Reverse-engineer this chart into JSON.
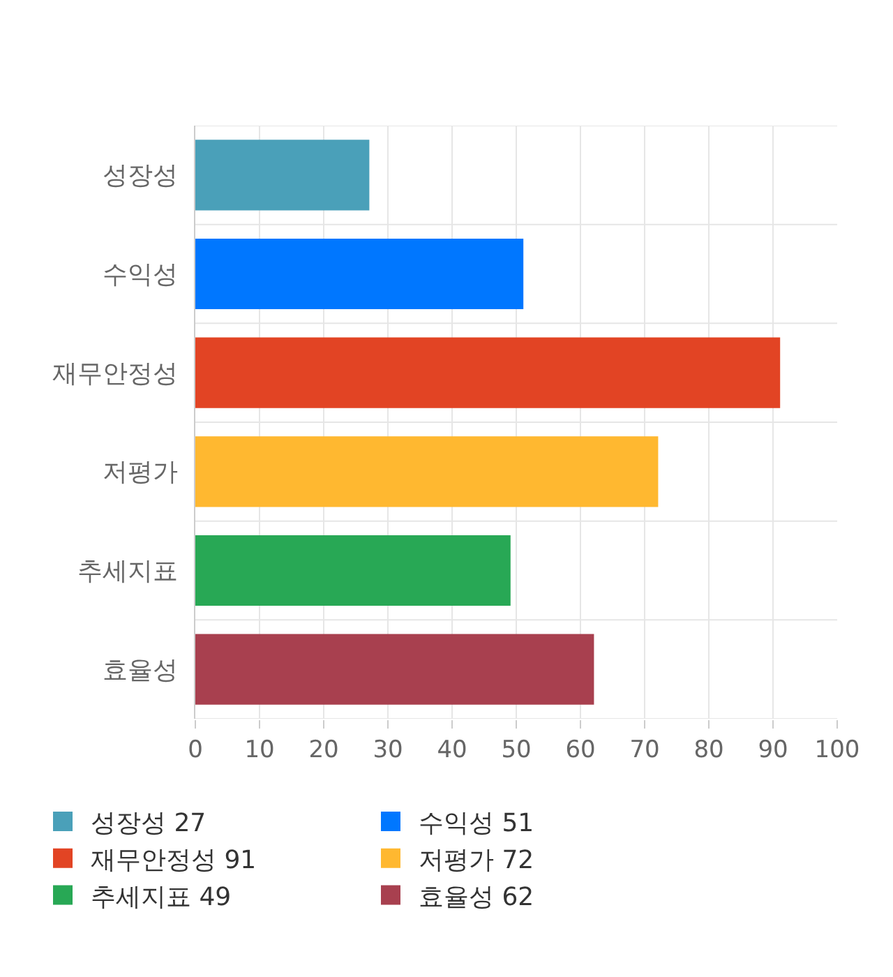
{
  "chart_data": {
    "type": "bar",
    "orientation": "horizontal",
    "categories": [
      "성장성",
      "수익성",
      "재무안정성",
      "저평가",
      "추세지표",
      "효율성"
    ],
    "series": [
      {
        "name": "성장성 27",
        "color": "#4aa0b9",
        "values": [
          27,
          null,
          null,
          null,
          null,
          null
        ]
      },
      {
        "name": "수익성 51",
        "color": "#0077ff",
        "values": [
          null,
          51,
          null,
          null,
          null,
          null
        ]
      },
      {
        "name": "재무안정성 91",
        "color": "#e24424",
        "values": [
          null,
          null,
          91,
          null,
          null,
          null
        ]
      },
      {
        "name": "저평가 72",
        "color": "#ffb830",
        "values": [
          null,
          null,
          null,
          72,
          null,
          null
        ]
      },
      {
        "name": "추세지표 49",
        "color": "#28a855",
        "values": [
          null,
          null,
          null,
          null,
          49,
          null
        ]
      },
      {
        "name": "효율성 62",
        "color": "#a8404f",
        "values": [
          null,
          null,
          null,
          null,
          null,
          62
        ]
      }
    ],
    "xlim": [
      0,
      100
    ],
    "xticks": [
      0,
      10,
      20,
      30,
      40,
      50,
      60,
      70,
      80,
      90,
      100
    ],
    "grid": true,
    "legend": "bottom"
  }
}
